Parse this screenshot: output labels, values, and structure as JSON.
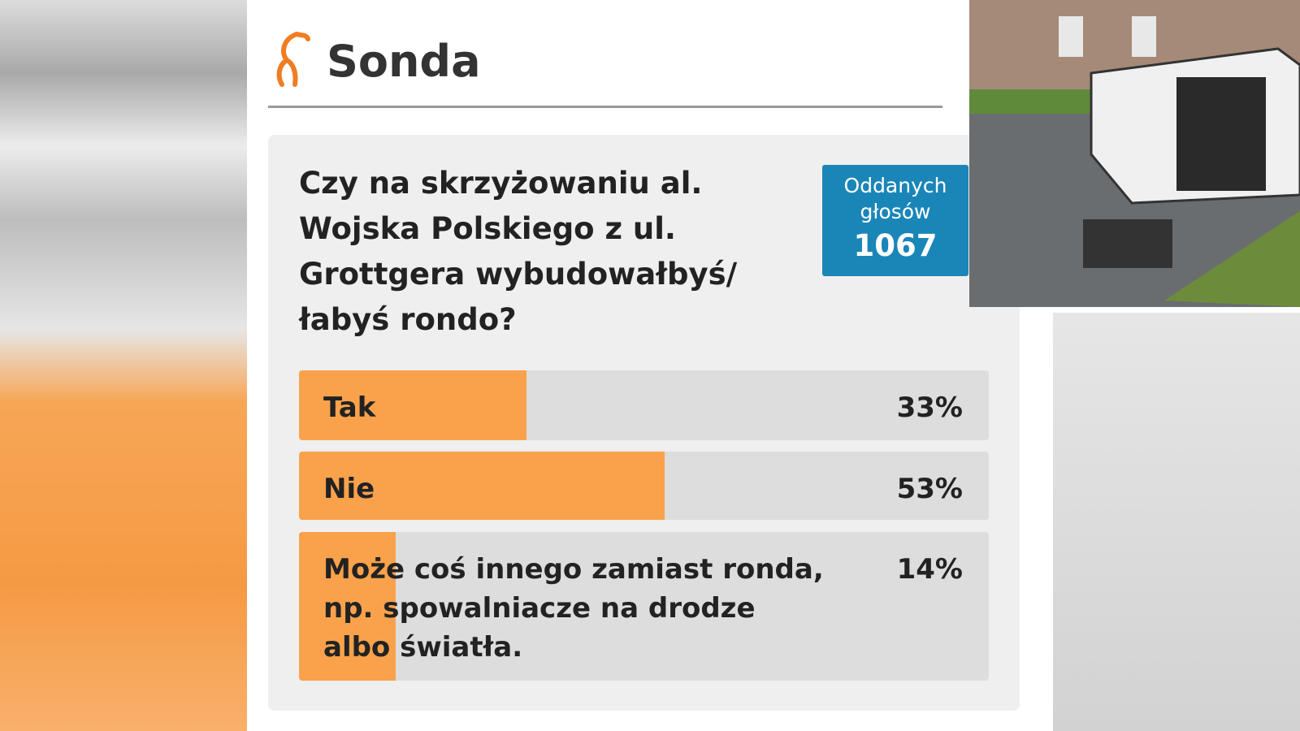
{
  "header": {
    "title": "Sonda"
  },
  "poll": {
    "question": "Czy na skrzyżowaniu al. Wojska Polskiego z ul. Grottgera wybudowałbyś/łabyś rondo?",
    "votes_label": "Oddanych głosów",
    "votes": "1067",
    "options": [
      {
        "label": "Tak",
        "value": 33,
        "value_label": "33%"
      },
      {
        "label": "Nie",
        "value": 53,
        "value_label": "53%"
      },
      {
        "label": "Może coś innego zamiast ronda, np. spowalniacze na drodze albo światła.",
        "value": 14,
        "value_label": "14%"
      }
    ]
  }
}
